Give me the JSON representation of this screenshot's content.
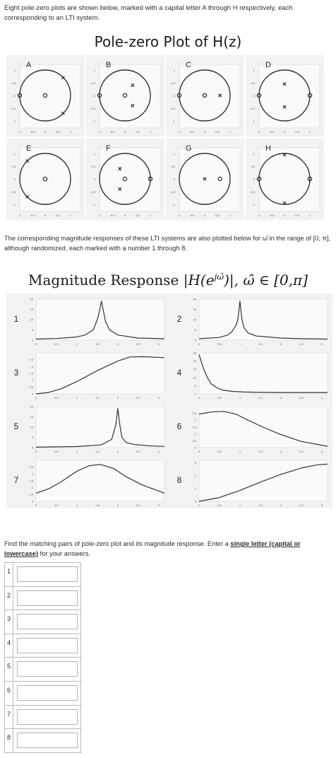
{
  "intro_text": "Eight pole-zero plots are shown below, marked with a capital letter A through H respectively, each corresponding to an LTI system.",
  "pz_title": "Pole-zero Plot of H(z)",
  "pz_plots": [
    {
      "letter": "A",
      "poles": [
        [
          0.7,
          0.7
        ],
        [
          0.7,
          -0.7
        ]
      ],
      "zeros": [
        [
          0,
          0
        ],
        [
          -1,
          0
        ]
      ]
    },
    {
      "letter": "B",
      "poles": [
        [
          0.3,
          0.4
        ],
        [
          0.3,
          -0.4
        ]
      ],
      "zeros": [
        [
          0,
          0
        ],
        [
          -1,
          0
        ]
      ]
    },
    {
      "letter": "C",
      "poles": [
        [
          0.6,
          0
        ]
      ],
      "zeros": [
        [
          0,
          0
        ],
        [
          -1,
          0
        ]
      ]
    },
    {
      "letter": "D",
      "poles": [
        [
          0,
          0.45
        ],
        [
          0,
          -0.45
        ]
      ],
      "zeros": [
        [
          -1,
          0
        ],
        [
          1,
          0
        ]
      ]
    },
    {
      "letter": "E",
      "poles": [
        [
          -0.7,
          0.7
        ],
        [
          -0.7,
          -0.7
        ]
      ],
      "zeros": [
        [
          0,
          0
        ]
      ]
    },
    {
      "letter": "F",
      "poles": [
        [
          -0.2,
          0.4
        ],
        [
          -0.2,
          -0.4
        ]
      ],
      "zeros": [
        [
          0,
          0
        ],
        [
          1,
          0
        ]
      ]
    },
    {
      "letter": "G",
      "poles": [
        [
          0,
          0
        ]
      ],
      "zeros": [
        [
          0.6,
          0
        ]
      ]
    },
    {
      "letter": "H",
      "poles": [
        [
          0,
          0.95
        ],
        [
          0,
          -0.95
        ]
      ],
      "zeros": [
        [
          -1,
          0
        ],
        [
          1,
          0
        ]
      ]
    }
  ],
  "pz_axis": {
    "x_ticks": [
      "-1",
      "-0.5",
      "0",
      "0.5",
      "1"
    ],
    "y_ticks": [
      "1",
      "0.5",
      "0",
      "-0.5",
      "-1"
    ]
  },
  "mid_text": "The corresponding magnitude responses of these LTI systems are also plotted below for ω̂ in the range of [0, π], although randomized, each marked with a number 1 through 8.",
  "mag_title": {
    "prefix": "Magnitude Response ",
    "expr": "|H(e",
    "sup": "jω̂",
    "close": ")|, ω̂ ∈ [0,π]"
  },
  "chart_data": [
    {
      "type": "line",
      "label": "1",
      "x_ticks": [
        "0",
        "0.5",
        "1",
        "1.5",
        "2",
        "2.5",
        "3"
      ],
      "y_ticks": [
        "20",
        "15",
        "10",
        "5",
        "0"
      ],
      "ylim": [
        0,
        20
      ],
      "x": [
        0,
        0.5,
        1.0,
        1.2,
        1.4,
        1.5,
        1.55,
        1.6,
        1.65,
        1.7,
        1.8,
        2.0,
        2.5,
        3.14
      ],
      "y": [
        0.5,
        0.8,
        1.5,
        2.5,
        5,
        10,
        14,
        19,
        14,
        9,
        5,
        2.5,
        1,
        0.7
      ]
    },
    {
      "type": "line",
      "label": "2",
      "x_ticks": [
        "0",
        "0.5",
        "1",
        "1.5",
        "2",
        "2.5",
        "3"
      ],
      "y_ticks": [
        "20",
        "15",
        "10",
        "5",
        "0"
      ],
      "ylim": [
        0,
        20
      ],
      "x": [
        0,
        0.5,
        0.7,
        0.8,
        0.9,
        0.95,
        1.0,
        1.05,
        1.1,
        1.2,
        1.4,
        2.0,
        2.5,
        3.14
      ],
      "y": [
        0.7,
        1.3,
        2.5,
        4,
        7,
        10,
        19,
        10,
        6,
        3.5,
        2,
        1,
        0.7,
        0.5
      ]
    },
    {
      "type": "line",
      "label": "3",
      "x_ticks": [
        "0",
        "0.5",
        "1",
        "1.5",
        "2",
        "2.5",
        "3"
      ],
      "y_ticks": [
        "2.5",
        "2",
        "1.5",
        "1",
        "0.5",
        "0"
      ],
      "ylim": [
        0,
        3
      ],
      "x": [
        0,
        0.3,
        0.6,
        1.0,
        1.5,
        2.0,
        2.3,
        2.6,
        3.14
      ],
      "y": [
        0,
        0.1,
        0.35,
        0.9,
        1.7,
        2.4,
        2.7,
        2.72,
        2.65
      ]
    },
    {
      "type": "line",
      "label": "4",
      "x_ticks": [
        "0",
        "0.5",
        "1",
        "1.5",
        "2",
        "2.5",
        "3"
      ],
      "y_ticks": [
        "25",
        "20",
        "15",
        "10",
        "5",
        "0"
      ],
      "ylim": [
        0,
        25
      ],
      "x": [
        0,
        0.1,
        0.2,
        0.3,
        0.45,
        0.6,
        0.8,
        1.1,
        1.5,
        2.0,
        3.14
      ],
      "y": [
        24,
        16,
        10,
        6,
        3.5,
        2.2,
        1.5,
        1.1,
        0.9,
        0.8,
        0.8
      ]
    },
    {
      "type": "line",
      "label": "5",
      "x_ticks": [
        "0",
        "0.5",
        "1",
        "1.5",
        "2",
        "2.5",
        "3"
      ],
      "y_ticks": [
        "20",
        "15",
        "10",
        "5",
        "0"
      ],
      "ylim": [
        0,
        20
      ],
      "x": [
        0,
        1.0,
        1.6,
        1.85,
        1.95,
        2.0,
        2.05,
        2.1,
        2.2,
        2.4,
        2.8,
        3.14
      ],
      "y": [
        0.2,
        0.5,
        1.3,
        4,
        11,
        19,
        11,
        5,
        2.5,
        1.5,
        0.8,
        0.6
      ]
    },
    {
      "type": "line",
      "label": "6",
      "x_ticks": [
        "0",
        "0.5",
        "1",
        "1.5",
        "2",
        "2.5",
        "3"
      ],
      "y_ticks": [
        "2.5",
        "2",
        "1.5",
        "1",
        "0.5",
        "0"
      ],
      "ylim": [
        0,
        3
      ],
      "x": [
        0,
        0.3,
        0.6,
        0.9,
        1.2,
        1.6,
        2.0,
        2.5,
        3.14
      ],
      "y": [
        2.45,
        2.6,
        2.65,
        2.45,
        2.0,
        1.45,
        0.95,
        0.45,
        0.1
      ]
    },
    {
      "type": "line",
      "label": "7",
      "x_ticks": [
        "0",
        "0.5",
        "1",
        "1.5",
        "2",
        "2.5",
        "3"
      ],
      "y_ticks": [
        "2.5",
        "2",
        "1.5",
        "1",
        "0.5",
        "0"
      ],
      "ylim": [
        0,
        3
      ],
      "x": [
        0,
        0.3,
        0.6,
        1.0,
        1.3,
        1.57,
        1.9,
        2.2,
        2.6,
        3.14
      ],
      "y": [
        0.6,
        0.9,
        1.4,
        2.2,
        2.6,
        2.7,
        2.4,
        1.8,
        1.2,
        0.6
      ]
    },
    {
      "type": "line",
      "label": "8",
      "x_ticks": [
        "0",
        "0.5",
        "1",
        "1.5",
        "2",
        "2.5",
        "3"
      ],
      "y_ticks": [
        "3",
        "2",
        "1",
        "0"
      ],
      "ylim": [
        0,
        3.2
      ],
      "x": [
        0,
        0.5,
        1.0,
        1.5,
        2.0,
        2.5,
        2.9,
        3.14
      ],
      "y": [
        0,
        0.3,
        0.85,
        1.5,
        2.1,
        2.6,
        2.85,
        2.9
      ]
    }
  ],
  "instruction": {
    "before": "Find the matching pairs of pole-zero plot and its magnitude response.  Enter a ",
    "bold": "single letter (capital or lowercase)",
    "after": " for your answers."
  },
  "answers": [
    {
      "num": "1",
      "value": ""
    },
    {
      "num": "2",
      "value": ""
    },
    {
      "num": "3",
      "value": ""
    },
    {
      "num": "4",
      "value": ""
    },
    {
      "num": "5",
      "value": ""
    },
    {
      "num": "6",
      "value": ""
    },
    {
      "num": "7",
      "value": ""
    },
    {
      "num": "8",
      "value": ""
    }
  ]
}
